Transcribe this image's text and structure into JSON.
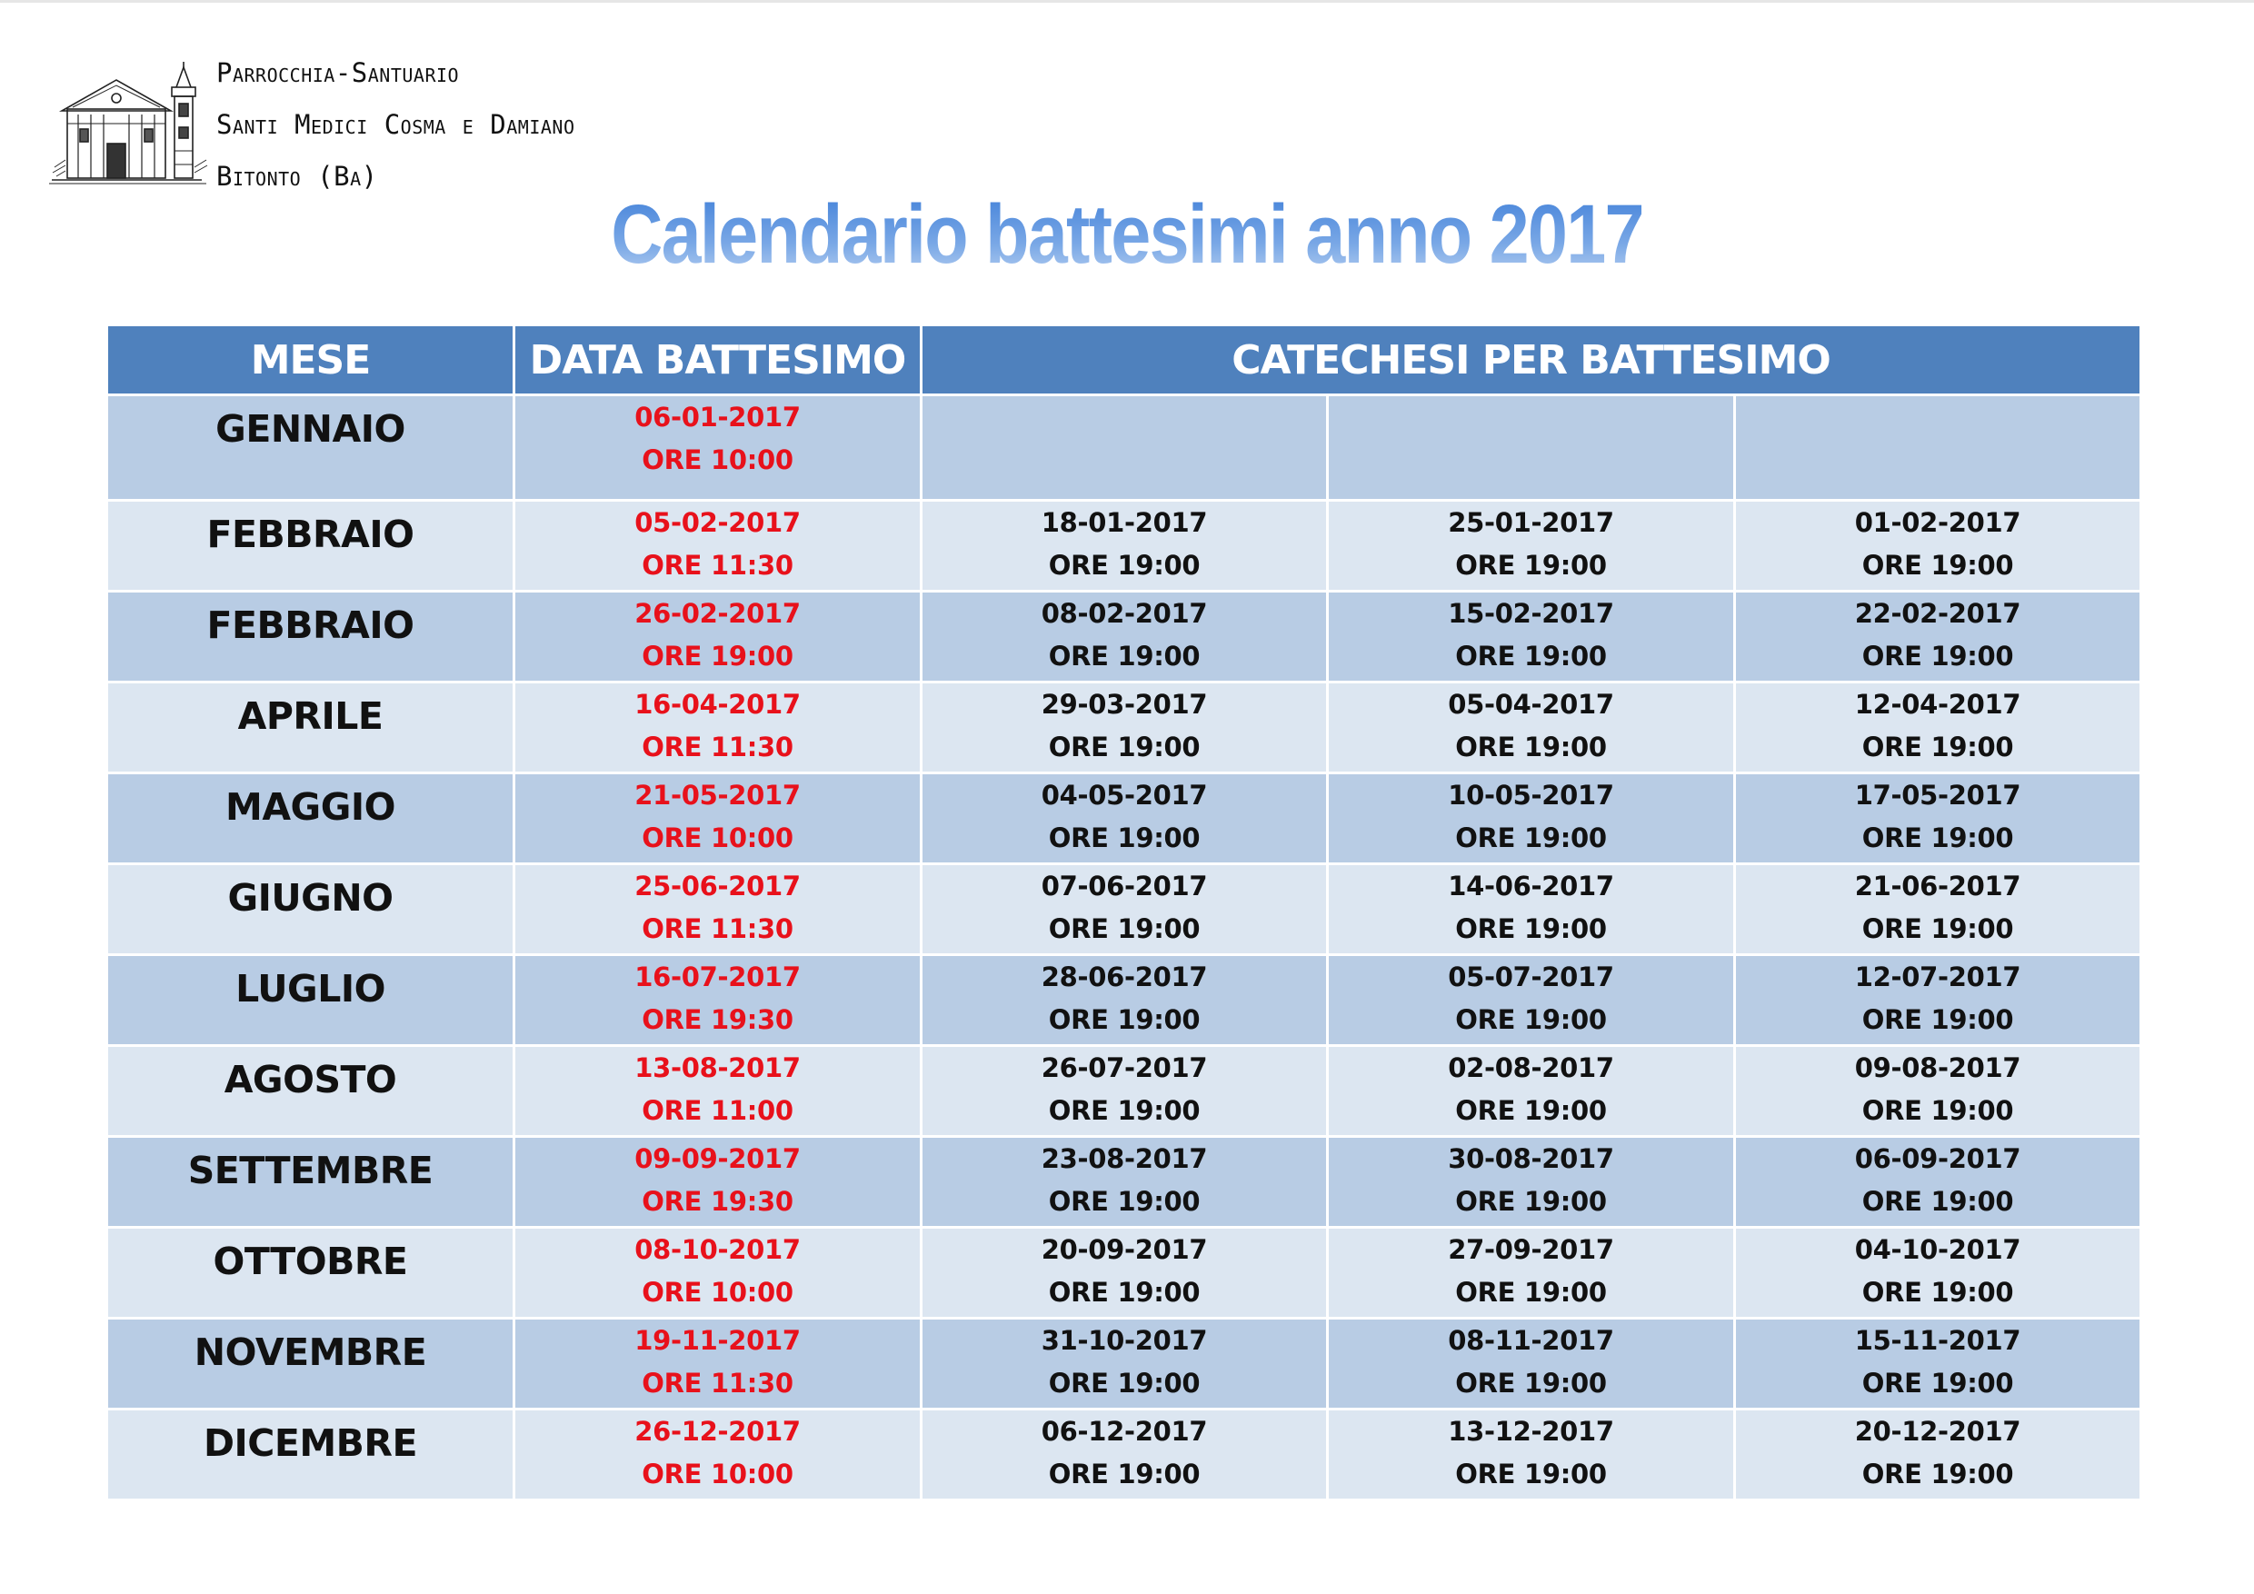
{
  "parish": {
    "line1": "Parrocchia-Santuario",
    "line2": "Santi Medici Cosma e Damiano",
    "line3": "Bitonto (Ba)"
  },
  "title": "Calendario battesimi anno 2017",
  "table": {
    "headers": {
      "mese": "MESE",
      "data_battesimo": "DATA BATTESIMO",
      "catechesi": "CATECHESI PER BATTESIMO"
    },
    "rows": [
      {
        "mese": "GENNAIO",
        "battesimo": {
          "date": "06-01-2017",
          "time": "ORE 10:00"
        },
        "catechesi": [
          {
            "date": "",
            "time": ""
          },
          {
            "date": "",
            "time": ""
          },
          {
            "date": "",
            "time": ""
          }
        ]
      },
      {
        "mese": "FEBBRAIO",
        "battesimo": {
          "date": "05-02-2017",
          "time": "ORE 11:30"
        },
        "catechesi": [
          {
            "date": "18-01-2017",
            "time": "ORE 19:00"
          },
          {
            "date": "25-01-2017",
            "time": "ORE 19:00"
          },
          {
            "date": "01-02-2017",
            "time": "ORE 19:00"
          }
        ]
      },
      {
        "mese": "FEBBRAIO",
        "battesimo": {
          "date": "26-02-2017",
          "time": "ORE 19:00"
        },
        "catechesi": [
          {
            "date": "08-02-2017",
            "time": "ORE 19:00"
          },
          {
            "date": "15-02-2017",
            "time": "ORE 19:00"
          },
          {
            "date": "22-02-2017",
            "time": "ORE 19:00"
          }
        ]
      },
      {
        "mese": "APRILE",
        "battesimo": {
          "date": "16-04-2017",
          "time": "ORE 11:30"
        },
        "catechesi": [
          {
            "date": "29-03-2017",
            "time": "ORE 19:00"
          },
          {
            "date": "05-04-2017",
            "time": "ORE 19:00"
          },
          {
            "date": "12-04-2017",
            "time": "ORE 19:00"
          }
        ]
      },
      {
        "mese": "MAGGIO",
        "battesimo": {
          "date": "21-05-2017",
          "time": "ORE 10:00"
        },
        "catechesi": [
          {
            "date": "04-05-2017",
            "time": "ORE 19:00"
          },
          {
            "date": "10-05-2017",
            "time": "ORE 19:00"
          },
          {
            "date": "17-05-2017",
            "time": "ORE 19:00"
          }
        ]
      },
      {
        "mese": "GIUGNO",
        "battesimo": {
          "date": "25-06-2017",
          "time": "ORE 11:30"
        },
        "catechesi": [
          {
            "date": "07-06-2017",
            "time": "ORE 19:00"
          },
          {
            "date": "14-06-2017",
            "time": "ORE 19:00"
          },
          {
            "date": "21-06-2017",
            "time": "ORE 19:00"
          }
        ]
      },
      {
        "mese": "LUGLIO",
        "battesimo": {
          "date": "16-07-2017",
          "time": "ORE 19:30"
        },
        "catechesi": [
          {
            "date": "28-06-2017",
            "time": "ORE 19:00"
          },
          {
            "date": "05-07-2017",
            "time": "ORE 19:00"
          },
          {
            "date": "12-07-2017",
            "time": "ORE 19:00"
          }
        ]
      },
      {
        "mese": "AGOSTO",
        "battesimo": {
          "date": "13-08-2017",
          "time": "ORE 11:00"
        },
        "catechesi": [
          {
            "date": "26-07-2017",
            "time": "ORE 19:00"
          },
          {
            "date": "02-08-2017",
            "time": "ORE 19:00"
          },
          {
            "date": "09-08-2017",
            "time": "ORE 19:00"
          }
        ]
      },
      {
        "mese": "SETTEMBRE",
        "battesimo": {
          "date": "09-09-2017",
          "time": "ORE 19:30"
        },
        "catechesi": [
          {
            "date": "23-08-2017",
            "time": "ORE 19:00"
          },
          {
            "date": "30-08-2017",
            "time": "ORE 19:00"
          },
          {
            "date": "06-09-2017",
            "time": "ORE 19:00"
          }
        ]
      },
      {
        "mese": "OTTOBRE",
        "battesimo": {
          "date": "08-10-2017",
          "time": "ORE 10:00"
        },
        "catechesi": [
          {
            "date": "20-09-2017",
            "time": "ORE 19:00"
          },
          {
            "date": "27-09-2017",
            "time": "ORE 19:00"
          },
          {
            "date": "04-10-2017",
            "time": "ORE 19:00"
          }
        ]
      },
      {
        "mese": "NOVEMBRE",
        "battesimo": {
          "date": "19-11-2017",
          "time": "ORE 11:30"
        },
        "catechesi": [
          {
            "date": "31-10-2017",
            "time": "ORE 19:00"
          },
          {
            "date": "08-11-2017",
            "time": "ORE 19:00"
          },
          {
            "date": "15-11-2017",
            "time": "ORE 19:00"
          }
        ]
      },
      {
        "mese": "DICEMBRE",
        "battesimo": {
          "date": "26-12-2017",
          "time": "ORE 10:00"
        },
        "catechesi": [
          {
            "date": "06-12-2017",
            "time": "ORE 19:00"
          },
          {
            "date": "13-12-2017",
            "time": "ORE 19:00"
          },
          {
            "date": "20-12-2017",
            "time": "ORE 19:00"
          }
        ]
      }
    ]
  },
  "colors": {
    "header_bg": "#4f81bd",
    "row_dark": "#b8cce4",
    "row_light": "#dce6f1",
    "baptism_text": "#e8111b",
    "title": "#5b8fd6"
  },
  "icons": {
    "logo": "church-sketch-icon"
  }
}
